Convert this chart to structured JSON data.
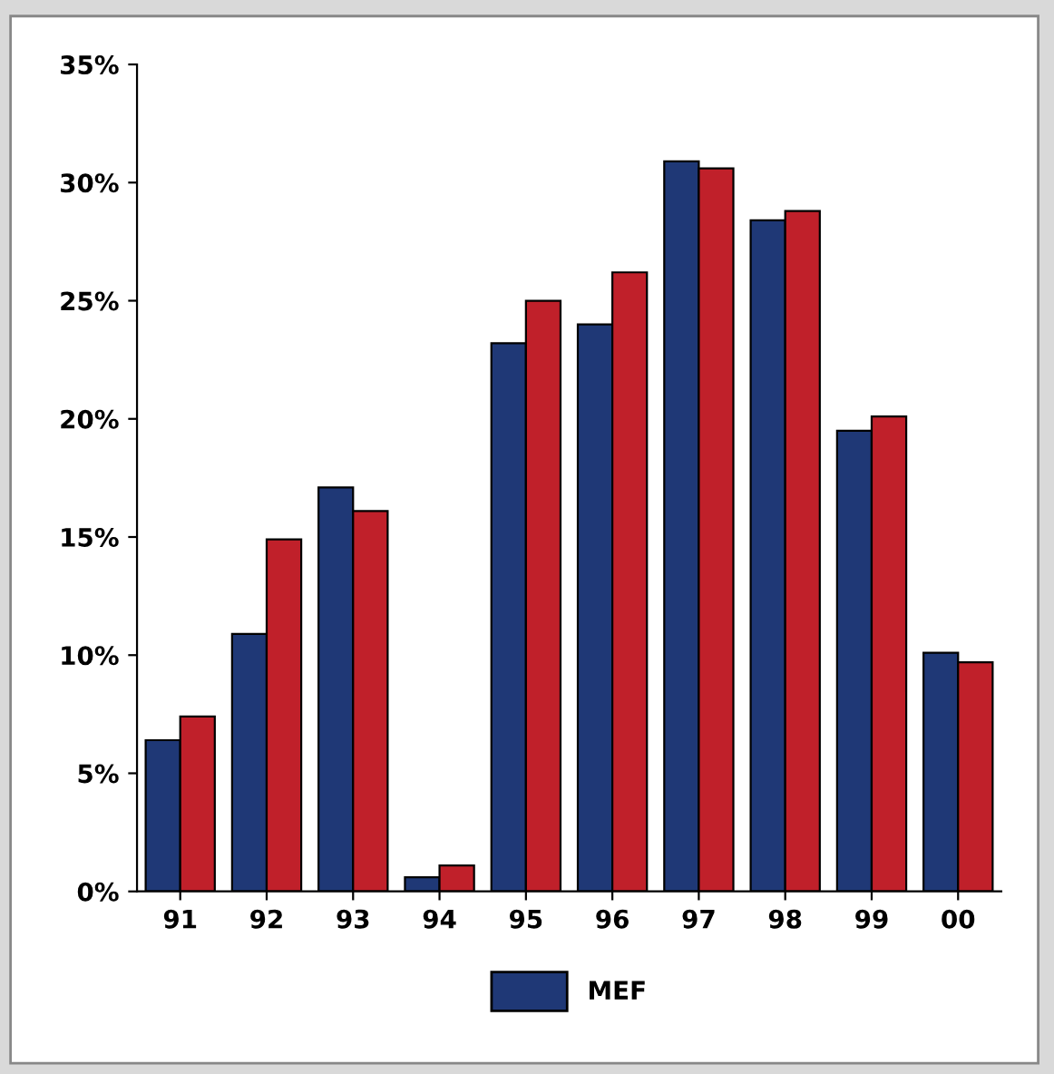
{
  "chart_data": {
    "type": "bar",
    "categories": [
      "91",
      "92",
      "93",
      "94",
      "95",
      "96",
      "97",
      "98",
      "99",
      "00"
    ],
    "series": [
      {
        "name": "MEF",
        "color": "#1f3876",
        "values": [
          6.4,
          10.9,
          17.1,
          0.6,
          23.2,
          24.0,
          30.9,
          28.4,
          19.5,
          10.1
        ]
      },
      {
        "color": "#c0202a",
        "values": [
          7.4,
          14.9,
          16.1,
          1.1,
          25.0,
          26.2,
          30.6,
          28.8,
          20.1,
          9.7
        ]
      }
    ],
    "ylim": [
      0,
      35
    ],
    "yticks": [
      {
        "value": 0,
        "label": "0%"
      },
      {
        "value": 5,
        "label": "5%"
      },
      {
        "value": 10,
        "label": "10%"
      },
      {
        "value": 15,
        "label": "15%"
      },
      {
        "value": 20,
        "label": "20%"
      },
      {
        "value": 25,
        "label": "25%"
      },
      {
        "value": 30,
        "label": "30%"
      },
      {
        "value": 35,
        "label": "35%"
      }
    ],
    "grid": false,
    "legend": "bottom"
  }
}
